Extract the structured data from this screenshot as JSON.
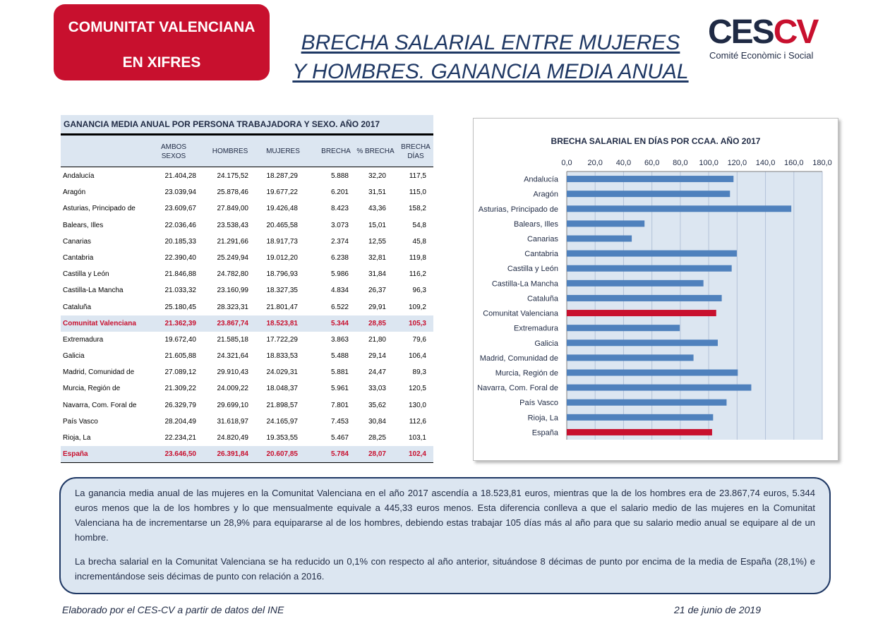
{
  "badge": {
    "line1": "COMUNITAT VALENCIANA",
    "line2": "EN XIFRES"
  },
  "title": {
    "line1": "BRECHA SALARIAL ENTRE MUJERES",
    "line2": "Y HOMBRES. GANANCIA MEDIA ANUAL"
  },
  "logo": {
    "word_a": "CES",
    "word_b": "CV",
    "subtitle": "Comité Econòmic i Social"
  },
  "table": {
    "title": "GANANCIA MEDIA ANUAL POR PERSONA TRABAJADORA Y SEXO. AÑO 2017",
    "headers": [
      "",
      "AMBOS SEXOS",
      "HOMBRES",
      "MUJERES",
      "BRECHA",
      "% BRECHA",
      "BRECHA DÍAS"
    ],
    "rows": [
      [
        "Andalucía",
        "21.404,28",
        "24.175,52",
        "18.287,29",
        "5.888",
        "32,20",
        "117,5"
      ],
      [
        "Aragón",
        "23.039,94",
        "25.878,46",
        "19.677,22",
        "6.201",
        "31,51",
        "115,0"
      ],
      [
        "Asturias, Principado de",
        "23.609,67",
        "27.849,00",
        "19.426,48",
        "8.423",
        "43,36",
        "158,2"
      ],
      [
        "Balears, Illes",
        "22.036,46",
        "23.538,43",
        "20.465,58",
        "3.073",
        "15,01",
        "54,8"
      ],
      [
        "Canarias",
        "20.185,33",
        "21.291,66",
        "18.917,73",
        "2.374",
        "12,55",
        "45,8"
      ],
      [
        "Cantabria",
        "22.390,40",
        "25.249,94",
        "19.012,20",
        "6.238",
        "32,81",
        "119,8"
      ],
      [
        "Castilla y León",
        "21.846,88",
        "24.782,80",
        "18.796,93",
        "5.986",
        "31,84",
        "116,2"
      ],
      [
        "Castilla-La Mancha",
        "21.033,32",
        "23.160,99",
        "18.327,35",
        "4.834",
        "26,37",
        "96,3"
      ],
      [
        "Cataluña",
        "25.180,45",
        "28.323,31",
        "21.801,47",
        "6.522",
        "29,91",
        "109,2"
      ],
      [
        "Comunitat Valenciana",
        "21.362,39",
        "23.867,74",
        "18.523,81",
        "5.344",
        "28,85",
        "105,3"
      ],
      [
        "Extremadura",
        "19.672,40",
        "21.585,18",
        "17.722,29",
        "3.863",
        "21,80",
        "79,6"
      ],
      [
        "Galicia",
        "21.605,88",
        "24.321,64",
        "18.833,53",
        "5.488",
        "29,14",
        "106,4"
      ],
      [
        "Madrid, Comunidad de",
        "27.089,12",
        "29.910,43",
        "24.029,31",
        "5.881",
        "24,47",
        "89,3"
      ],
      [
        "Murcia, Región de",
        "21.309,22",
        "24.009,22",
        "18.048,37",
        "5.961",
        "33,03",
        "120,5"
      ],
      [
        "Navarra, Com. Foral de",
        "26.329,79",
        "29.699,10",
        "21.898,57",
        "7.801",
        "35,62",
        "130,0"
      ],
      [
        "País Vasco",
        "28.204,49",
        "31.618,97",
        "24.165,97",
        "7.453",
        "30,84",
        "112,6"
      ],
      [
        "Rioja, La",
        "22.234,21",
        "24.820,49",
        "19.353,55",
        "5.467",
        "28,25",
        "103,1"
      ],
      [
        "España",
        "23.646,50",
        "26.391,84",
        "20.607,85",
        "5.784",
        "28,07",
        "102,4"
      ]
    ],
    "highlight_rows": [
      "Comunitat Valenciana",
      "España"
    ]
  },
  "chart_data": {
    "type": "bar",
    "orientation": "horizontal",
    "title": "BRECHA SALARIAL EN DÍAS POR CCAA. AÑO 2017",
    "categories": [
      "Andalucía",
      "Aragón",
      "Asturias, Principado de",
      "Balears, Illes",
      "Canarias",
      "Cantabria",
      "Castilla y León",
      "Castilla-La Mancha",
      "Cataluña",
      "Comunitat Valenciana",
      "Extremadura",
      "Galicia",
      "Madrid, Comunidad de",
      "Murcia, Región de",
      "Navarra, Com. Foral de",
      "País Vasco",
      "Rioja, La",
      "España"
    ],
    "values": [
      117.5,
      115.0,
      158.2,
      54.8,
      45.8,
      119.8,
      116.2,
      96.3,
      109.2,
      105.3,
      79.6,
      106.4,
      89.3,
      120.5,
      130.0,
      112.6,
      103.1,
      102.4
    ],
    "xlim": [
      0,
      180
    ],
    "ticks": [
      "0,0",
      "20,0",
      "40,0",
      "60,0",
      "80,0",
      "100,0",
      "120,0",
      "140,0",
      "160,0",
      "180,0"
    ],
    "tick_values": [
      0,
      20,
      40,
      60,
      80,
      100,
      120,
      140,
      160,
      180
    ],
    "grid": true,
    "xaxis_position": "top",
    "legend": "none",
    "bar_color": "#4f81bd",
    "highlight_color": "#c8102e",
    "highlight_categories": [
      "Comunitat Valenciana",
      "España"
    ],
    "plot_background": "#dce6f1"
  },
  "text": {
    "p1": "La ganancia media anual de las mujeres en la Comunitat Valenciana en el año 2017 ascendía a 18.523,81 euros, mientras que la de los hombres era de 23.867,74 euros, 5.344 euros menos que la de los hombres y lo que mensualmente equivale a 445,33 euros menos. Esta diferencia conlleva a que el salario medio de las mujeres en la Comunitat Valenciana ha de incrementarse un 28,9% para equipararse al de los hombres, debiendo estas trabajar 105 días más al año para que su salario medio anual se equipare al de un hombre.",
    "p2": "La brecha salarial en la Comunitat Valenciana se ha reducido un 0,1% con respecto al año anterior, situándose 8 décimas de punto por encima de la media de España (28,1%) e incrementándose seis décimas de punto con relación a 2016."
  },
  "footer": {
    "source": "Elaborado por el CES-CV a partir de datos del INE",
    "date": "21 de junio de 2019"
  },
  "colors": {
    "brand_red": "#c8102e",
    "navy": "#1f3864",
    "light_blue": "#dce6f1",
    "bar_blue": "#4f81bd"
  }
}
